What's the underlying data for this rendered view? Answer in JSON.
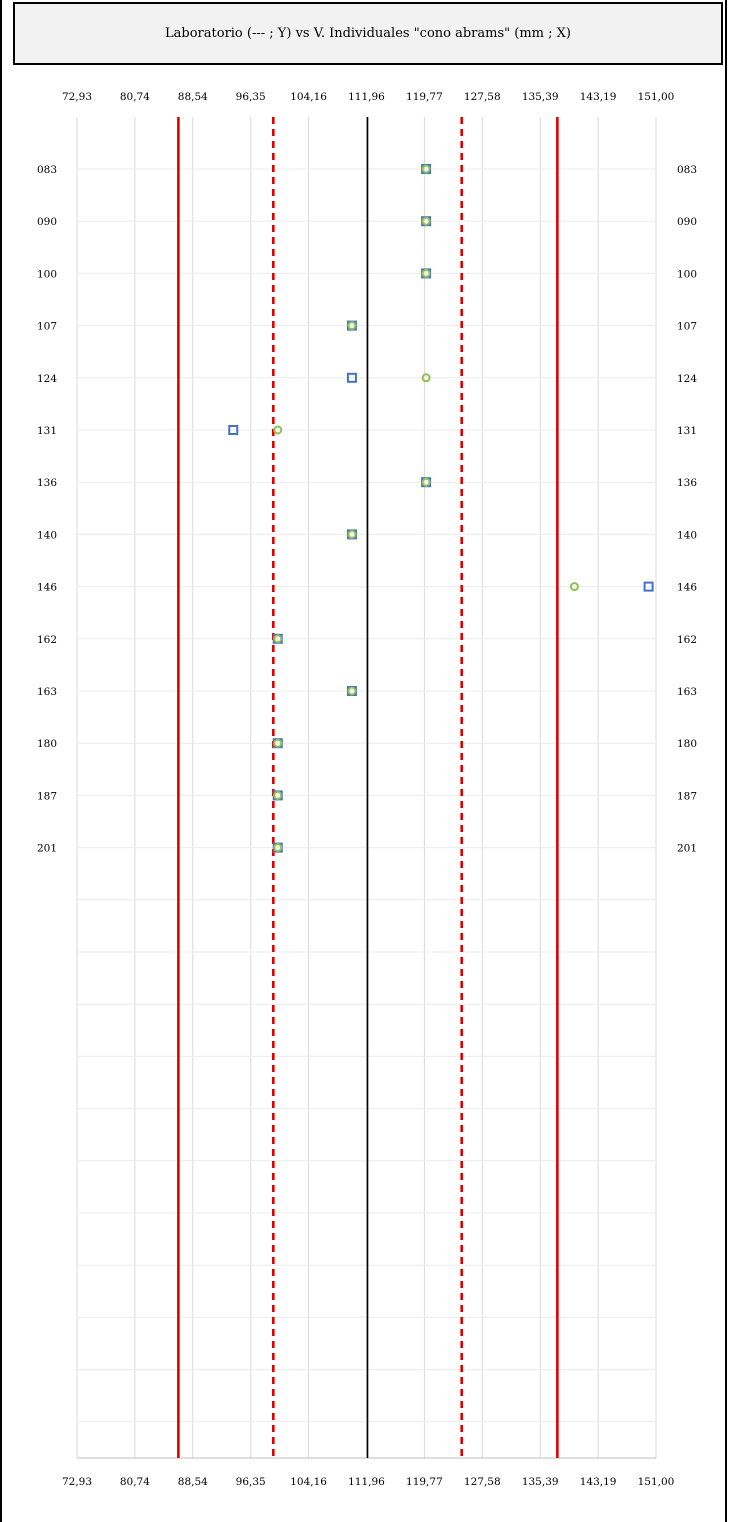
{
  "chart_data": {
    "type": "scatter",
    "title": "Laboratorio (--- ; Y) vs V. Individuales \"cono abrams\" (mm ; X)",
    "xlabel": "",
    "ylabel": "",
    "x_ticks": [
      "72,93",
      "80,74",
      "88,54",
      "96,35",
      "104,16",
      "111,96",
      "119,77",
      "127,58",
      "135,39",
      "143,19",
      "151,00"
    ],
    "xlim": [
      72.93,
      151.0
    ],
    "categories": [
      "083",
      "090",
      "100",
      "107",
      "124",
      "131",
      "136",
      "140",
      "146",
      "162",
      "163",
      "180",
      "187",
      "201"
    ],
    "series": [
      {
        "marker": "square",
        "color": "#4472c4",
        "values": [
          120,
          120,
          120,
          110,
          110,
          94,
          120,
          110,
          150,
          100,
          110,
          100,
          100,
          100
        ]
      },
      {
        "marker": "circle",
        "color": "#92c050",
        "values": [
          120,
          120,
          120,
          110,
          120,
          100,
          120,
          110,
          140,
          100,
          110,
          100,
          100,
          100
        ]
      }
    ],
    "reference_lines": [
      {
        "value": 86.6,
        "style": "solid",
        "color": "#e00000"
      },
      {
        "value": 99.4,
        "style": "dashed",
        "color": "#e00000"
      },
      {
        "value": 112.1,
        "style": "solid",
        "color": "#000000"
      },
      {
        "value": 124.8,
        "style": "dashed",
        "color": "#e00000"
      },
      {
        "value": 137.7,
        "style": "solid",
        "color": "#e00000"
      }
    ],
    "grid": true
  }
}
